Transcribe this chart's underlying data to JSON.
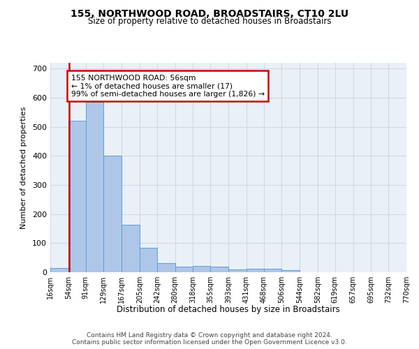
{
  "title": "155, NORTHWOOD ROAD, BROADSTAIRS, CT10 2LU",
  "subtitle": "Size of property relative to detached houses in Broadstairs",
  "xlabel": "Distribution of detached houses by size in Broadstairs",
  "ylabel": "Number of detached properties",
  "bar_values": [
    15,
    520,
    585,
    400,
    163,
    85,
    32,
    20,
    22,
    20,
    10,
    13,
    13,
    7,
    0,
    0,
    0,
    0,
    0,
    0
  ],
  "bin_edges": [
    16,
    54,
    91,
    129,
    167,
    205,
    242,
    280,
    318,
    355,
    393,
    431,
    468,
    506,
    544,
    582,
    619,
    657,
    695,
    732,
    770
  ],
  "tick_labels": [
    "16sqm",
    "54sqm",
    "91sqm",
    "129sqm",
    "167sqm",
    "205sqm",
    "242sqm",
    "280sqm",
    "318sqm",
    "355sqm",
    "393sqm",
    "431sqm",
    "468sqm",
    "506sqm",
    "544sqm",
    "582sqm",
    "619sqm",
    "657sqm",
    "695sqm",
    "732sqm",
    "770sqm"
  ],
  "bar_color": "#aec6e8",
  "bar_edge_color": "#5a9fd4",
  "grid_color": "#d0d8e8",
  "property_line_x": 56,
  "annotation_text": "155 NORTHWOOD ROAD: 56sqm\n← 1% of detached houses are smaller (17)\n99% of semi-detached houses are larger (1,826) →",
  "annotation_box_color": "#ffffff",
  "annotation_box_edge_color": "#cc0000",
  "footnote1": "Contains HM Land Registry data © Crown copyright and database right 2024.",
  "footnote2": "Contains public sector information licensed under the Open Government Licence v3.0.",
  "ylim": [
    0,
    720
  ],
  "yticks": [
    0,
    100,
    200,
    300,
    400,
    500,
    600,
    700
  ],
  "bg_color": "#ffffff",
  "ax_bg_color": "#eaf0f8"
}
